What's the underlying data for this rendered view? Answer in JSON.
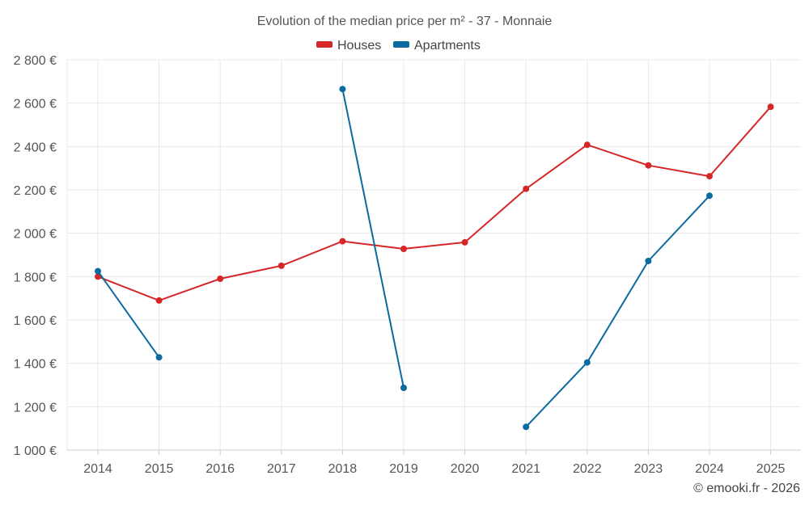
{
  "chart_data": {
    "type": "line",
    "title": "Evolution of the median price per m² - 37 - Monnaie",
    "categories": [
      "2014",
      "2015",
      "2016",
      "2017",
      "2018",
      "2019",
      "2020",
      "2021",
      "2022",
      "2023",
      "2024",
      "2025"
    ],
    "ylim": [
      1000,
      2800
    ],
    "yticks": [
      1000,
      1200,
      1400,
      1600,
      1800,
      2000,
      2200,
      2400,
      2600,
      2800
    ],
    "ytick_labels": [
      "1 000 €",
      "1 200 €",
      "1 400 €",
      "1 600 €",
      "1 800 €",
      "2 000 €",
      "2 200 €",
      "2 400 €",
      "2 600 €",
      "2 800 €"
    ],
    "grid": true,
    "legend_position": "top-center",
    "series": [
      {
        "name": "Houses",
        "color": "#d62728",
        "values": [
          1800,
          1690,
          1790,
          1850,
          1963,
          1928,
          1958,
          2205,
          2408,
          2313,
          2263,
          2583
        ]
      },
      {
        "name": "Apartments",
        "color": "#0b6a9e",
        "values": [
          1825,
          1428,
          null,
          null,
          2665,
          1287,
          null,
          1107,
          1404,
          1872,
          2173,
          null
        ]
      }
    ],
    "credit": "© emooki.fr - 2026"
  }
}
